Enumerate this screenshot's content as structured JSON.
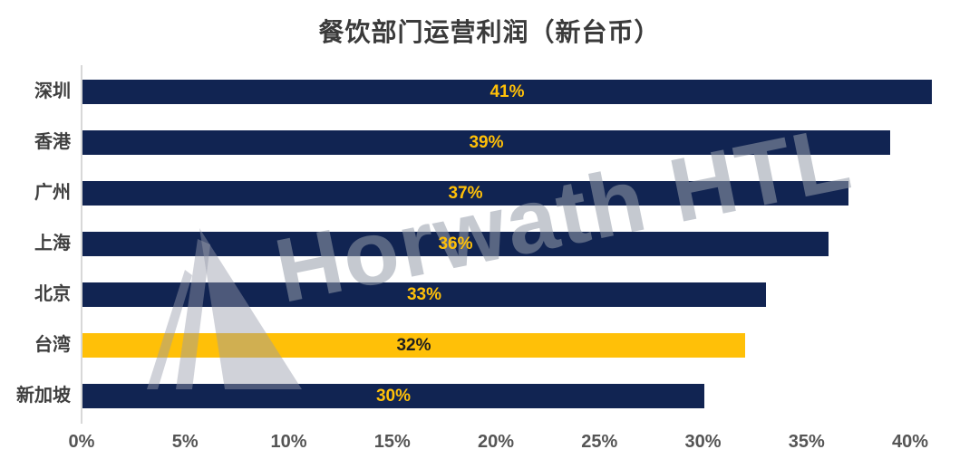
{
  "chart_data": {
    "type": "bar",
    "orientation": "horizontal",
    "title": "餐饮部门运营利润（新台币）",
    "categories": [
      "深圳",
      "香港",
      "广州",
      "上海",
      "北京",
      "台湾",
      "新加坡"
    ],
    "values": [
      41,
      39,
      37,
      36,
      33,
      32,
      30
    ],
    "value_labels": [
      "41%",
      "39%",
      "37%",
      "36%",
      "33%",
      "32%",
      "30%"
    ],
    "highlight_index": 5,
    "highlighted_category": "台湾",
    "xlabel": "",
    "ylabel": "",
    "xlim": [
      0,
      42
    ],
    "x_tick_values": [
      0,
      5,
      10,
      15,
      20,
      25,
      30,
      35,
      40
    ],
    "x_tick_labels": [
      "0%",
      "5%",
      "10%",
      "15%",
      "20%",
      "25%",
      "30%",
      "35%",
      "40%"
    ],
    "grid": false,
    "legend": false,
    "colors": {
      "bar_navy": "#112452",
      "bar_highlight": "#FFC008",
      "value_label_on_navy": "#FFC008",
      "value_label_on_highlight": "#1F1F1F",
      "title_text": "#3A3A3A",
      "category_text": "#3F3F3F",
      "tick_text": "#555555",
      "axis_line": "#D8D8D8"
    }
  },
  "watermark": {
    "text": "Horwath HTL",
    "logo": "horwath-triangle-logo"
  }
}
